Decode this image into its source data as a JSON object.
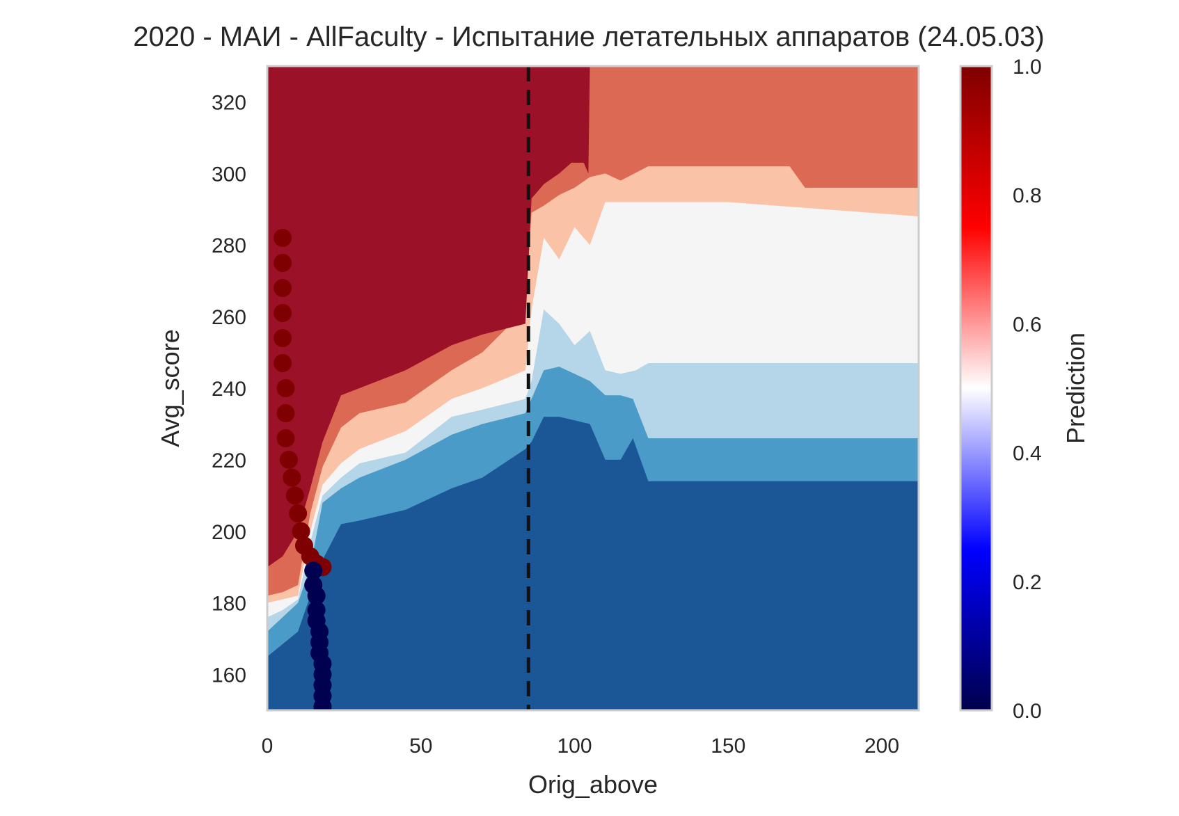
{
  "chart_data": {
    "type": "heatmap",
    "title": "2020 - МАИ - AllFaculty - Испытание летательных аппаратов (24.05.03)",
    "xlabel": "Orig_above",
    "ylabel": "Avg_score",
    "xlim": [
      0,
      212
    ],
    "ylim": [
      150,
      330
    ],
    "xticks": [
      "0",
      "50",
      "100",
      "150",
      "200"
    ],
    "yticks": [
      "160",
      "180",
      "200",
      "220",
      "240",
      "260",
      "280",
      "300",
      "320"
    ],
    "colorbar": {
      "label": "Prediction",
      "range": [
        0.0,
        1.0
      ],
      "ticks": [
        "0.0",
        "0.2",
        "0.4",
        "0.6",
        "0.8",
        "1.0"
      ],
      "colormap": "seismic"
    },
    "vertical_line": {
      "x": 85,
      "style": "dashed",
      "color": "#111111"
    },
    "contour_levels": [
      {
        "level": 0,
        "color": "#1b5796"
      },
      {
        "level": 1,
        "color": "#4a9bc8"
      },
      {
        "level": 2,
        "color": "#b5d6e8"
      },
      {
        "level": 3,
        "color": "#f5f5f5"
      },
      {
        "level": 4,
        "color": "#fac3a8"
      },
      {
        "level": 5,
        "color": "#dc6954"
      },
      {
        "level": 6,
        "color": "#9b1127"
      }
    ],
    "boundaries": [
      {
        "name": "b1",
        "x": [
          0,
          10,
          14,
          18,
          24,
          30,
          45,
          60,
          70,
          84,
          86,
          90,
          95,
          100,
          105,
          110,
          115,
          119,
          124,
          150,
          212
        ],
        "y": [
          165,
          172,
          182,
          192,
          202,
          203,
          206,
          212,
          215,
          223,
          225,
          232,
          232,
          231,
          230,
          220,
          220,
          226,
          214,
          214,
          214
        ]
      },
      {
        "name": "b2",
        "x": [
          0,
          5,
          10,
          14,
          18,
          24,
          30,
          45,
          60,
          70,
          84,
          86,
          90,
          95,
          100,
          105,
          110,
          115,
          119,
          124,
          150,
          212
        ],
        "y": [
          172,
          176,
          180,
          190,
          208,
          212,
          215,
          220,
          227,
          230,
          233,
          237,
          245,
          246,
          244,
          242,
          238,
          238,
          237,
          226,
          226,
          226
        ]
      },
      {
        "name": "b3",
        "x": [
          0,
          5,
          10,
          14,
          18,
          24,
          30,
          45,
          60,
          70,
          84,
          86,
          90,
          95,
          100,
          105,
          110,
          115,
          120,
          124,
          150,
          212
        ],
        "y": [
          176,
          178,
          181,
          197,
          210,
          215,
          219,
          222,
          232,
          234,
          237,
          242,
          262,
          258,
          252,
          256,
          245,
          244,
          245,
          247,
          247,
          247
        ]
      },
      {
        "name": "b4",
        "x": [
          0,
          5,
          10,
          14,
          18,
          24,
          30,
          45,
          60,
          70,
          84,
          86,
          90,
          95,
          100,
          105,
          110,
          115,
          124,
          150,
          212
        ],
        "y": [
          180,
          181,
          182,
          200,
          213,
          219,
          223,
          228,
          237,
          240,
          245,
          262,
          282,
          276,
          285,
          280,
          292,
          292,
          292,
          292,
          288
        ]
      },
      {
        "name": "b5",
        "x": [
          0,
          5,
          10,
          14,
          18,
          24,
          30,
          45,
          60,
          70,
          84,
          86,
          90,
          95,
          100,
          105,
          110,
          115,
          124,
          150,
          170,
          175,
          212
        ],
        "y": [
          182,
          183,
          185,
          205,
          218,
          229,
          233,
          236,
          245,
          250,
          262,
          289,
          291,
          294,
          296,
          299,
          300,
          298,
          302,
          302,
          302,
          296,
          296
        ]
      },
      {
        "name": "b6",
        "x": [
          0,
          5,
          10,
          14,
          18,
          24,
          30,
          45,
          60,
          70,
          84,
          86,
          90,
          95,
          99,
          101,
          103,
          104.5,
          105,
          212
        ],
        "y": [
          190,
          193,
          200,
          212,
          225,
          238,
          240,
          245,
          252,
          255,
          258,
          293,
          297,
          300,
          303,
          303,
          303,
          300,
          330,
          330
        ]
      }
    ],
    "scatter_series": [
      {
        "name": "high",
        "color": "#7f0000",
        "points": [
          [
            5,
            282
          ],
          [
            5,
            275
          ],
          [
            5,
            268
          ],
          [
            5,
            261
          ],
          [
            5,
            254
          ],
          [
            5,
            247
          ],
          [
            6,
            240
          ],
          [
            6,
            233
          ],
          [
            6,
            226
          ],
          [
            7,
            220
          ],
          [
            8,
            215
          ],
          [
            9,
            210
          ],
          [
            10,
            205
          ],
          [
            11,
            200
          ],
          [
            12,
            196
          ],
          [
            14,
            193
          ],
          [
            16,
            191
          ],
          [
            18,
            190
          ]
        ]
      },
      {
        "name": "low",
        "color": "#000050",
        "points": [
          [
            15,
            189
          ],
          [
            15,
            185
          ],
          [
            16,
            182
          ],
          [
            16,
            178
          ],
          [
            16,
            175
          ],
          [
            17,
            172
          ],
          [
            17,
            169
          ],
          [
            17,
            166
          ],
          [
            18,
            163
          ],
          [
            18,
            160
          ],
          [
            18,
            157
          ],
          [
            18,
            154
          ],
          [
            18,
            151
          ]
        ]
      }
    ]
  }
}
